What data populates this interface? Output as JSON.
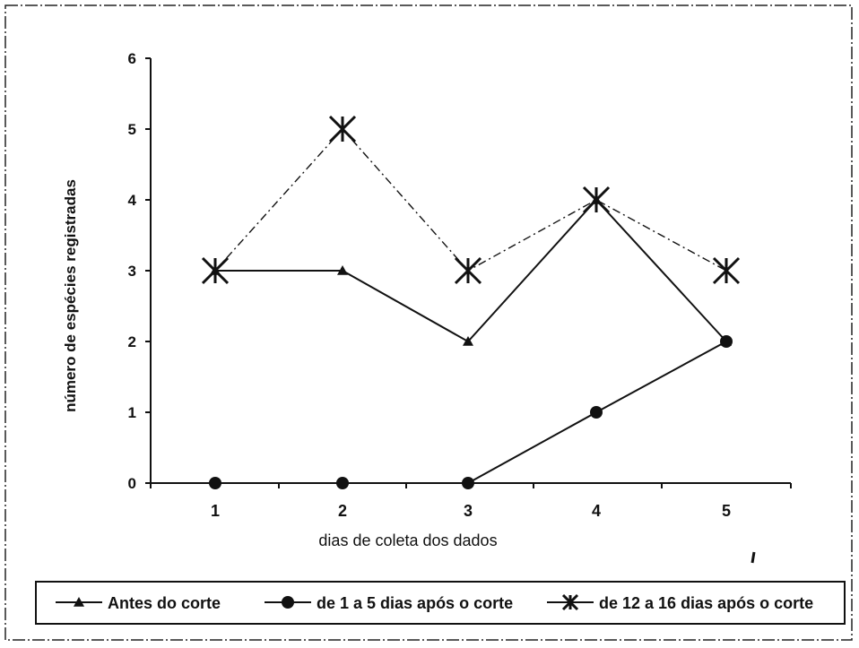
{
  "chart_data": {
    "type": "line",
    "title": "",
    "xlabel": "dias de coleta dos dados",
    "ylabel": "número de espécies registradas",
    "x": [
      1,
      2,
      3,
      4,
      5
    ],
    "x_ticks": [
      "1",
      "2",
      "3",
      "4",
      "5"
    ],
    "y_ticks": [
      "0",
      "1",
      "2",
      "3",
      "4",
      "5",
      "6"
    ],
    "ylim": [
      0,
      6
    ],
    "grid": false,
    "legend_position": "bottom",
    "series": [
      {
        "name": "Antes do corte",
        "values": [
          3,
          3,
          2,
          4,
          2
        ],
        "marker": "triangle",
        "line_style": "solid",
        "color": "#111111"
      },
      {
        "name": "de 1 a 5 dias após o corte",
        "values": [
          0,
          0,
          0,
          1,
          2
        ],
        "marker": "circle",
        "line_style": "solid",
        "color": "#111111"
      },
      {
        "name": "de 12 a 16 dias após o corte",
        "values": [
          3,
          5,
          3,
          4,
          3
        ],
        "marker": "asterisk",
        "line_style": "dashdot",
        "color": "#111111"
      }
    ]
  }
}
